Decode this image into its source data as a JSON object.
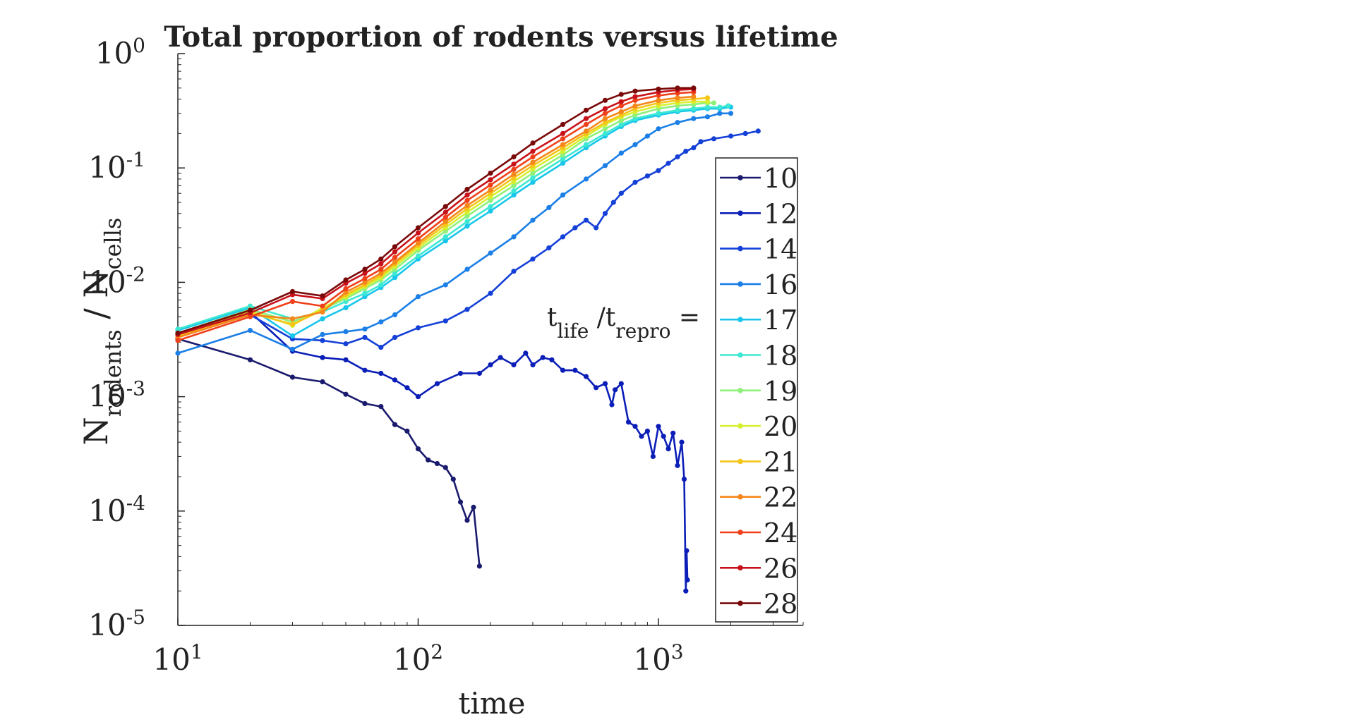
{
  "chart_data": {
    "type": "line",
    "title": "Total proportion of rodents versus lifetime",
    "xlabel": "time",
    "ylabel": {
      "base": "N",
      "sub": "rodents",
      "sep": " / ",
      "base2": "N",
      "sub2": "cells"
    },
    "xscale": "log",
    "yscale": "log",
    "xlim": [
      10,
      4000
    ],
    "ylim": [
      1e-05,
      1
    ],
    "xticks": [
      {
        "value": 10,
        "base": "10",
        "exp": "1"
      },
      {
        "value": 100,
        "base": "10",
        "exp": "2"
      },
      {
        "value": 1000,
        "base": "10",
        "exp": "3"
      }
    ],
    "yticks": [
      {
        "value": 1,
        "base": "10",
        "exp": "0"
      },
      {
        "value": 0.1,
        "base": "10",
        "exp": "-1"
      },
      {
        "value": 0.01,
        "base": "10",
        "exp": "-2"
      },
      {
        "value": 0.001,
        "base": "10",
        "exp": "-3"
      },
      {
        "value": 0.0001,
        "base": "10",
        "exp": "-4"
      },
      {
        "value": 1e-05,
        "base": "10",
        "exp": "-5"
      }
    ],
    "annotation": {
      "t1": "t",
      "s1": "life",
      "sep": " /",
      "t2": "t",
      "s2": "repro",
      "eq": " ="
    },
    "legend_position": "right",
    "grid": false,
    "series": [
      {
        "name": "10",
        "color": "#1a1a6e",
        "x": [
          10,
          20,
          30,
          40,
          50,
          60,
          70,
          80,
          90,
          100,
          110,
          120,
          130,
          140,
          150,
          160,
          170,
          180
        ],
        "y": [
          0.0032,
          0.0021,
          0.00148,
          0.00135,
          0.00105,
          0.00087,
          0.00082,
          0.00057,
          0.0005,
          0.00035,
          0.00028,
          0.00026,
          0.00024,
          0.00019,
          0.00012,
          8.3e-05,
          0.000108,
          3.3e-05
        ]
      },
      {
        "name": "12",
        "color": "#0b1eb8",
        "x": [
          10,
          20,
          30,
          40,
          50,
          60,
          70,
          80,
          90,
          100,
          120,
          150,
          180,
          200,
          220,
          250,
          280,
          300,
          330,
          360,
          400,
          450,
          500,
          550,
          600,
          640,
          660,
          700,
          750,
          800,
          850,
          900,
          950,
          1000,
          1050,
          1100,
          1150,
          1200,
          1250,
          1280,
          1300,
          1310,
          1320
        ],
        "y": [
          0.0035,
          0.0055,
          0.0025,
          0.0022,
          0.0021,
          0.0017,
          0.0016,
          0.0014,
          0.0012,
          0.001,
          0.0013,
          0.0016,
          0.0016,
          0.0019,
          0.0022,
          0.0019,
          0.0024,
          0.0019,
          0.0022,
          0.0021,
          0.0017,
          0.0017,
          0.0015,
          0.0012,
          0.0013,
          0.00085,
          0.00115,
          0.0013,
          0.0006,
          0.00055,
          0.00045,
          0.0005,
          0.0003,
          0.00055,
          0.00045,
          0.00035,
          0.00048,
          0.00025,
          0.0004,
          0.00019,
          2e-05,
          4.5e-05,
          2.5e-05
        ]
      },
      {
        "name": "14",
        "color": "#1440d8",
        "x": [
          10,
          20,
          30,
          40,
          50,
          60,
          70,
          80,
          100,
          130,
          160,
          200,
          250,
          300,
          350,
          400,
          450,
          500,
          550,
          600,
          650,
          700,
          800,
          900,
          1000,
          1100,
          1200,
          1300,
          1400,
          1500,
          1700,
          2000,
          2300,
          2600
        ],
        "y": [
          0.0034,
          0.0052,
          0.0032,
          0.0031,
          0.0029,
          0.0033,
          0.0027,
          0.0033,
          0.004,
          0.0046,
          0.0058,
          0.008,
          0.0125,
          0.016,
          0.02,
          0.025,
          0.03,
          0.035,
          0.03,
          0.04,
          0.05,
          0.06,
          0.075,
          0.085,
          0.095,
          0.11,
          0.125,
          0.14,
          0.15,
          0.17,
          0.18,
          0.19,
          0.2,
          0.21
        ]
      },
      {
        "name": "16",
        "color": "#1b7fe6",
        "x": [
          10,
          20,
          30,
          40,
          50,
          60,
          70,
          80,
          100,
          130,
          160,
          200,
          250,
          300,
          350,
          400,
          500,
          600,
          700,
          800,
          900,
          1000,
          1200,
          1400,
          1600,
          1800,
          2000
        ],
        "y": [
          0.0024,
          0.0038,
          0.0026,
          0.0035,
          0.0037,
          0.0039,
          0.0045,
          0.0052,
          0.0075,
          0.0095,
          0.013,
          0.018,
          0.025,
          0.035,
          0.045,
          0.058,
          0.08,
          0.105,
          0.135,
          0.16,
          0.19,
          0.22,
          0.25,
          0.27,
          0.28,
          0.3,
          0.3
        ]
      },
      {
        "name": "17",
        "color": "#18c6ec",
        "x": [
          10,
          20,
          30,
          40,
          50,
          60,
          70,
          80,
          100,
          130,
          160,
          200,
          250,
          300,
          400,
          500,
          600,
          700,
          800,
          1000,
          1200,
          1400,
          1600,
          1800,
          2000
        ],
        "y": [
          0.0038,
          0.006,
          0.0034,
          0.0048,
          0.006,
          0.0075,
          0.009,
          0.011,
          0.016,
          0.023,
          0.031,
          0.042,
          0.058,
          0.075,
          0.11,
          0.15,
          0.19,
          0.23,
          0.26,
          0.29,
          0.31,
          0.32,
          0.33,
          0.33,
          0.34
        ]
      },
      {
        "name": "18",
        "color": "#3de8d2",
        "x": [
          10,
          20,
          30,
          40,
          50,
          60,
          70,
          80,
          100,
          130,
          160,
          200,
          250,
          300,
          400,
          500,
          600,
          700,
          800,
          1000,
          1200,
          1400,
          1600,
          1800,
          1950
        ],
        "y": [
          0.0039,
          0.0062,
          0.0048,
          0.0055,
          0.0068,
          0.008,
          0.0095,
          0.012,
          0.017,
          0.025,
          0.034,
          0.046,
          0.063,
          0.082,
          0.12,
          0.16,
          0.2,
          0.24,
          0.27,
          0.3,
          0.32,
          0.33,
          0.34,
          0.34,
          0.35
        ]
      },
      {
        "name": "19",
        "color": "#8ef07a",
        "x": [
          10,
          20,
          30,
          40,
          50,
          60,
          70,
          80,
          100,
          130,
          160,
          200,
          250,
          300,
          400,
          500,
          600,
          700,
          800,
          1000,
          1200,
          1400,
          1600,
          1700
        ],
        "y": [
          0.0036,
          0.0058,
          0.0045,
          0.0058,
          0.0072,
          0.0088,
          0.0105,
          0.013,
          0.019,
          0.028,
          0.038,
          0.052,
          0.07,
          0.09,
          0.13,
          0.18,
          0.22,
          0.26,
          0.29,
          0.33,
          0.35,
          0.36,
          0.37,
          0.37
        ]
      },
      {
        "name": "20",
        "color": "#d6f030",
        "x": [
          10,
          20,
          30,
          40,
          50,
          60,
          70,
          80,
          100,
          130,
          160,
          200,
          250,
          300,
          400,
          500,
          600,
          700,
          800,
          1000,
          1200,
          1400,
          1600
        ],
        "y": [
          0.0035,
          0.0056,
          0.0042,
          0.006,
          0.0075,
          0.0092,
          0.011,
          0.0138,
          0.02,
          0.03,
          0.041,
          0.056,
          0.076,
          0.098,
          0.14,
          0.19,
          0.24,
          0.28,
          0.31,
          0.35,
          0.37,
          0.38,
          0.38
        ]
      },
      {
        "name": "21",
        "color": "#f5c518",
        "x": [
          10,
          20,
          30,
          40,
          50,
          60,
          70,
          80,
          100,
          130,
          160,
          200,
          250,
          300,
          400,
          500,
          600,
          700,
          800,
          1000,
          1200,
          1400,
          1600
        ],
        "y": [
          0.0034,
          0.0054,
          0.0043,
          0.0057,
          0.0078,
          0.0095,
          0.0115,
          0.0145,
          0.021,
          0.032,
          0.044,
          0.06,
          0.082,
          0.105,
          0.15,
          0.2,
          0.25,
          0.29,
          0.33,
          0.37,
          0.39,
          0.4,
          0.41
        ]
      },
      {
        "name": "22",
        "color": "#f5871a",
        "x": [
          10,
          20,
          30,
          40,
          50,
          60,
          70,
          80,
          100,
          130,
          160,
          200,
          250,
          300,
          400,
          500,
          600,
          700,
          800,
          1000,
          1200,
          1400
        ],
        "y": [
          0.0033,
          0.0052,
          0.0048,
          0.0055,
          0.0082,
          0.01,
          0.012,
          0.015,
          0.022,
          0.034,
          0.047,
          0.064,
          0.088,
          0.112,
          0.16,
          0.21,
          0.27,
          0.31,
          0.35,
          0.39,
          0.41,
          0.42
        ]
      },
      {
        "name": "24",
        "color": "#f0401a",
        "x": [
          10,
          20,
          30,
          40,
          50,
          60,
          70,
          80,
          100,
          130,
          160,
          200,
          250,
          300,
          400,
          500,
          600,
          700,
          800,
          1000,
          1200,
          1400
        ],
        "y": [
          0.0031,
          0.005,
          0.0068,
          0.0062,
          0.0088,
          0.0108,
          0.013,
          0.0165,
          0.024,
          0.037,
          0.052,
          0.071,
          0.097,
          0.125,
          0.18,
          0.24,
          0.3,
          0.35,
          0.39,
          0.43,
          0.45,
          0.46
        ]
      },
      {
        "name": "26",
        "color": "#c8121a",
        "x": [
          10,
          20,
          30,
          40,
          50,
          60,
          70,
          80,
          100,
          130,
          160,
          200,
          250,
          300,
          400,
          500,
          600,
          700,
          800,
          1000,
          1200,
          1400
        ],
        "y": [
          0.0035,
          0.0054,
          0.0078,
          0.0072,
          0.0098,
          0.012,
          0.0145,
          0.0185,
          0.027,
          0.041,
          0.058,
          0.079,
          0.108,
          0.14,
          0.2,
          0.27,
          0.33,
          0.38,
          0.42,
          0.46,
          0.48,
          0.49
        ]
      },
      {
        "name": "28",
        "color": "#7a0a0a",
        "x": [
          10,
          20,
          30,
          40,
          50,
          60,
          70,
          80,
          100,
          130,
          160,
          200,
          250,
          300,
          400,
          500,
          600,
          700,
          800,
          1000,
          1200,
          1400
        ],
        "y": [
          0.0036,
          0.0057,
          0.0083,
          0.0076,
          0.0105,
          0.013,
          0.016,
          0.0205,
          0.03,
          0.046,
          0.065,
          0.09,
          0.125,
          0.165,
          0.24,
          0.32,
          0.39,
          0.44,
          0.47,
          0.49,
          0.5,
          0.5
        ]
      }
    ]
  }
}
